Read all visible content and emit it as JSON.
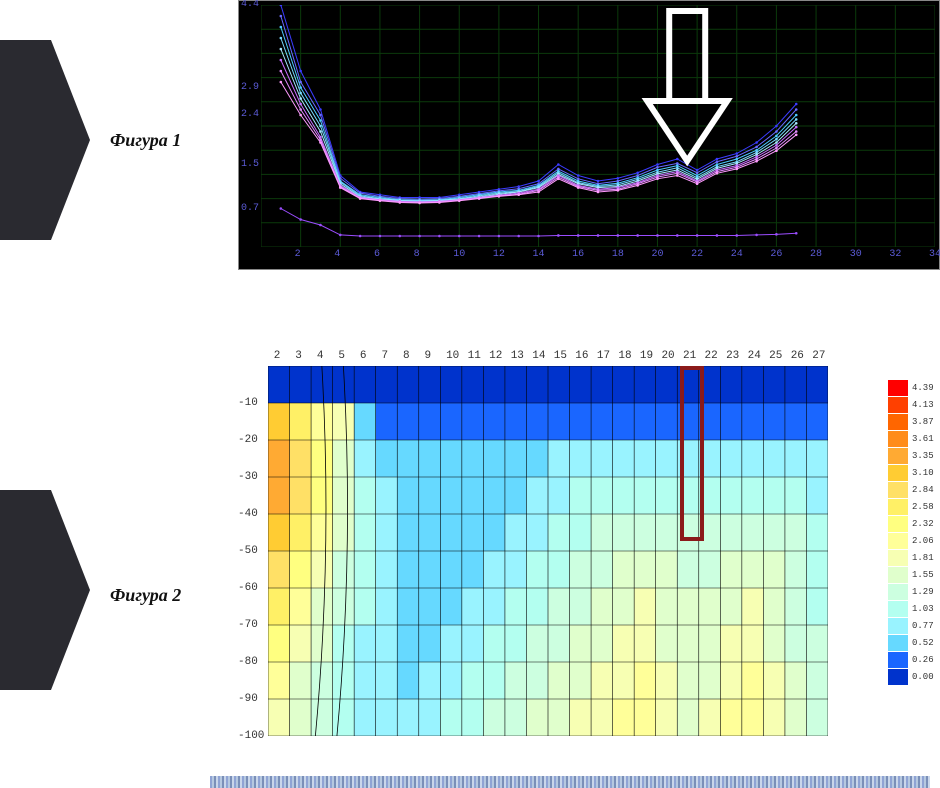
{
  "figure1": {
    "label": "Фигура 1",
    "type": "line",
    "background_color": "#000000",
    "grid_color": "#0b3a0b",
    "axis_label_color": "#5b5bd6",
    "x": {
      "min": 0,
      "max": 34,
      "ticks": [
        2,
        4,
        6,
        8,
        10,
        12,
        14,
        16,
        18,
        20,
        22,
        24,
        26,
        28,
        30,
        32,
        34
      ]
    },
    "y": {
      "min": 0,
      "max": 4.4,
      "ticks": [
        0.7,
        1.5,
        2.4,
        2.9,
        4.4
      ]
    },
    "series_x": [
      1,
      2,
      3,
      4,
      5,
      6,
      7,
      8,
      9,
      10,
      11,
      12,
      13,
      14,
      15,
      16,
      17,
      18,
      19,
      20,
      21,
      22,
      23,
      24,
      25,
      26,
      27
    ],
    "series": [
      {
        "color": "#3b3bff",
        "y": [
          4.4,
          3.2,
          2.5,
          1.3,
          1.0,
          0.95,
          0.9,
          0.9,
          0.9,
          0.95,
          1.0,
          1.05,
          1.1,
          1.2,
          1.5,
          1.3,
          1.2,
          1.25,
          1.35,
          1.5,
          1.6,
          1.4,
          1.6,
          1.7,
          1.9,
          2.2,
          2.6
        ]
      },
      {
        "color": "#6a6aff",
        "y": [
          4.2,
          3.0,
          2.4,
          1.25,
          0.98,
          0.92,
          0.88,
          0.87,
          0.88,
          0.92,
          0.97,
          1.02,
          1.06,
          1.15,
          1.42,
          1.24,
          1.15,
          1.2,
          1.3,
          1.45,
          1.52,
          1.35,
          1.55,
          1.65,
          1.82,
          2.1,
          2.5
        ]
      },
      {
        "color": "#4ec9ff",
        "y": [
          4.0,
          2.9,
          2.3,
          1.2,
          0.95,
          0.9,
          0.86,
          0.85,
          0.86,
          0.9,
          0.95,
          1.0,
          1.03,
          1.12,
          1.38,
          1.2,
          1.12,
          1.16,
          1.26,
          1.4,
          1.48,
          1.3,
          1.5,
          1.6,
          1.76,
          2.02,
          2.4
        ]
      },
      {
        "color": "#79d9ff",
        "y": [
          3.8,
          2.8,
          2.2,
          1.18,
          0.93,
          0.88,
          0.85,
          0.84,
          0.85,
          0.88,
          0.93,
          0.98,
          1.01,
          1.1,
          1.35,
          1.17,
          1.1,
          1.13,
          1.23,
          1.36,
          1.44,
          1.26,
          1.46,
          1.55,
          1.72,
          1.96,
          2.32
        ]
      },
      {
        "color": "#a6e7ff",
        "y": [
          3.6,
          2.7,
          2.1,
          1.15,
          0.91,
          0.87,
          0.84,
          0.83,
          0.84,
          0.87,
          0.91,
          0.96,
          1.0,
          1.08,
          1.32,
          1.15,
          1.08,
          1.1,
          1.2,
          1.33,
          1.4,
          1.23,
          1.43,
          1.52,
          1.68,
          1.9,
          2.25
        ]
      },
      {
        "color": "#c66cff",
        "y": [
          3.4,
          2.6,
          2.0,
          1.12,
          0.9,
          0.86,
          0.83,
          0.82,
          0.83,
          0.86,
          0.9,
          0.94,
          0.98,
          1.05,
          1.3,
          1.12,
          1.05,
          1.08,
          1.17,
          1.3,
          1.37,
          1.2,
          1.4,
          1.48,
          1.64,
          1.85,
          2.18
        ]
      },
      {
        "color": "#e38aff",
        "y": [
          3.2,
          2.5,
          1.95,
          1.1,
          0.89,
          0.85,
          0.82,
          0.81,
          0.82,
          0.85,
          0.89,
          0.93,
          0.96,
          1.03,
          1.27,
          1.1,
          1.03,
          1.05,
          1.15,
          1.27,
          1.34,
          1.18,
          1.37,
          1.45,
          1.6,
          1.8,
          2.1
        ]
      },
      {
        "color": "#ff9bff",
        "y": [
          3.0,
          2.4,
          1.9,
          1.08,
          0.88,
          0.84,
          0.81,
          0.8,
          0.81,
          0.84,
          0.88,
          0.92,
          0.95,
          1.0,
          1.24,
          1.08,
          1.0,
          1.03,
          1.12,
          1.24,
          1.3,
          1.15,
          1.34,
          1.42,
          1.56,
          1.75,
          2.04
        ]
      },
      {
        "color": "#9b4dff",
        "y": [
          0.7,
          0.5,
          0.4,
          0.22,
          0.2,
          0.2,
          0.2,
          0.2,
          0.2,
          0.2,
          0.2,
          0.2,
          0.2,
          0.2,
          0.21,
          0.21,
          0.21,
          0.21,
          0.21,
          0.21,
          0.21,
          0.21,
          0.21,
          0.21,
          0.22,
          0.23,
          0.25
        ]
      }
    ],
    "arrow_overlay": {
      "x": 21.5,
      "color": "#ffffff",
      "stroke_width": 6
    }
  },
  "figure2": {
    "label": "Фигура 2",
    "type": "heatmap",
    "background_color": "#ffffff",
    "grid_color": "#000000",
    "x": {
      "ticks": [
        2,
        3,
        4,
        5,
        6,
        7,
        8,
        9,
        10,
        11,
        12,
        13,
        14,
        15,
        16,
        17,
        18,
        19,
        20,
        21,
        22,
        23,
        24,
        25,
        26,
        27
      ],
      "min": 1,
      "max": 27
    },
    "y": {
      "ticks": [
        -10,
        -20,
        -30,
        -40,
        -50,
        -60,
        -70,
        -80,
        -90,
        -100
      ],
      "min": -100,
      "max": 0
    },
    "legend": [
      {
        "v": "4.39",
        "c": "#ff0000"
      },
      {
        "v": "4.13",
        "c": "#ff4000"
      },
      {
        "v": "3.87",
        "c": "#ff6600"
      },
      {
        "v": "3.61",
        "c": "#ff8c1a"
      },
      {
        "v": "3.35",
        "c": "#ffaa33"
      },
      {
        "v": "3.10",
        "c": "#ffcc33"
      },
      {
        "v": "2.84",
        "c": "#ffe066"
      },
      {
        "v": "2.58",
        "c": "#fff066"
      },
      {
        "v": "2.32",
        "c": "#ffff80"
      },
      {
        "v": "2.06",
        "c": "#ffff99"
      },
      {
        "v": "1.81",
        "c": "#f7ffb3"
      },
      {
        "v": "1.55",
        "c": "#e0ffcc"
      },
      {
        "v": "1.29",
        "c": "#ccffe0"
      },
      {
        "v": "1.03",
        "c": "#b3fff0"
      },
      {
        "v": "0.77",
        "c": "#99f3ff"
      },
      {
        "v": "0.52",
        "c": "#66d9ff"
      },
      {
        "v": "0.26",
        "c": "#1a66ff"
      },
      {
        "v": "0.00",
        "c": "#0033cc"
      }
    ],
    "cells_palette": {
      "deep": "#0033cc",
      "blue": "#1a66ff",
      "sky": "#66d9ff",
      "cyan": "#99f3ff",
      "aqua": "#b3fff0",
      "pgr": "#ccffe0",
      "lime": "#e0ffcc",
      "ylw1": "#f7ffb3",
      "ylw2": "#ffff99",
      "ylw3": "#ffff80",
      "or1": "#fff066",
      "or2": "#ffe066",
      "or3": "#ffcc33",
      "or4": "#ffaa33"
    },
    "grid": [
      [
        "deep",
        "deep",
        "deep",
        "deep",
        "deep",
        "deep",
        "deep",
        "deep",
        "deep",
        "deep",
        "deep",
        "deep",
        "deep",
        "deep",
        "deep",
        "deep",
        "deep",
        "deep",
        "deep",
        "deep",
        "deep",
        "deep",
        "deep",
        "deep",
        "deep",
        "deep"
      ],
      [
        "or3",
        "or1",
        "ylw2",
        "ylw1",
        "sky",
        "blue",
        "blue",
        "blue",
        "blue",
        "blue",
        "blue",
        "blue",
        "blue",
        "blue",
        "blue",
        "blue",
        "blue",
        "blue",
        "blue",
        "blue",
        "blue",
        "blue",
        "blue",
        "blue",
        "blue",
        "blue"
      ],
      [
        "or4",
        "or2",
        "ylw3",
        "lime",
        "cyan",
        "sky",
        "sky",
        "sky",
        "sky",
        "sky",
        "sky",
        "sky",
        "sky",
        "cyan",
        "cyan",
        "cyan",
        "cyan",
        "cyan",
        "cyan",
        "cyan",
        "cyan",
        "cyan",
        "cyan",
        "cyan",
        "cyan",
        "cyan"
      ],
      [
        "or4",
        "or2",
        "ylw3",
        "lime",
        "aqua",
        "cyan",
        "sky",
        "sky",
        "sky",
        "sky",
        "sky",
        "sky",
        "cyan",
        "cyan",
        "aqua",
        "aqua",
        "aqua",
        "aqua",
        "aqua",
        "aqua",
        "aqua",
        "aqua",
        "aqua",
        "aqua",
        "aqua",
        "cyan"
      ],
      [
        "or3",
        "or1",
        "ylw2",
        "lime",
        "aqua",
        "cyan",
        "sky",
        "sky",
        "sky",
        "sky",
        "sky",
        "cyan",
        "cyan",
        "aqua",
        "aqua",
        "pgr",
        "pgr",
        "pgr",
        "pgr",
        "pgr",
        "pgr",
        "pgr",
        "pgr",
        "pgr",
        "pgr",
        "aqua"
      ],
      [
        "or2",
        "ylw3",
        "ylw1",
        "pgr",
        "aqua",
        "cyan",
        "sky",
        "sky",
        "sky",
        "sky",
        "cyan",
        "cyan",
        "aqua",
        "aqua",
        "pgr",
        "pgr",
        "lime",
        "lime",
        "lime",
        "pgr",
        "pgr",
        "lime",
        "lime",
        "lime",
        "pgr",
        "aqua"
      ],
      [
        "or1",
        "ylw2",
        "lime",
        "pgr",
        "aqua",
        "cyan",
        "sky",
        "sky",
        "sky",
        "cyan",
        "cyan",
        "aqua",
        "aqua",
        "pgr",
        "pgr",
        "lime",
        "lime",
        "ylw1",
        "lime",
        "lime",
        "lime",
        "lime",
        "ylw1",
        "lime",
        "pgr",
        "aqua"
      ],
      [
        "ylw3",
        "ylw1",
        "lime",
        "aqua",
        "cyan",
        "cyan",
        "sky",
        "sky",
        "cyan",
        "cyan",
        "aqua",
        "aqua",
        "pgr",
        "pgr",
        "lime",
        "lime",
        "ylw1",
        "ylw1",
        "lime",
        "lime",
        "lime",
        "ylw1",
        "ylw1",
        "lime",
        "pgr",
        "pgr"
      ],
      [
        "ylw2",
        "lime",
        "pgr",
        "aqua",
        "cyan",
        "cyan",
        "sky",
        "cyan",
        "cyan",
        "aqua",
        "aqua",
        "pgr",
        "pgr",
        "lime",
        "lime",
        "ylw1",
        "ylw1",
        "ylw2",
        "ylw1",
        "lime",
        "lime",
        "ylw1",
        "ylw2",
        "ylw1",
        "lime",
        "pgr"
      ],
      [
        "ylw1",
        "lime",
        "pgr",
        "aqua",
        "cyan",
        "cyan",
        "cyan",
        "cyan",
        "aqua",
        "aqua",
        "pgr",
        "pgr",
        "lime",
        "lime",
        "ylw1",
        "ylw1",
        "ylw2",
        "ylw2",
        "ylw1",
        "lime",
        "ylw1",
        "ylw2",
        "ylw2",
        "ylw1",
        "lime",
        "pgr"
      ]
    ],
    "red_marker": {
      "x_col": 21,
      "y_from": 0,
      "y_to": -45,
      "color": "#8b1a1a",
      "border_width": 4
    }
  }
}
